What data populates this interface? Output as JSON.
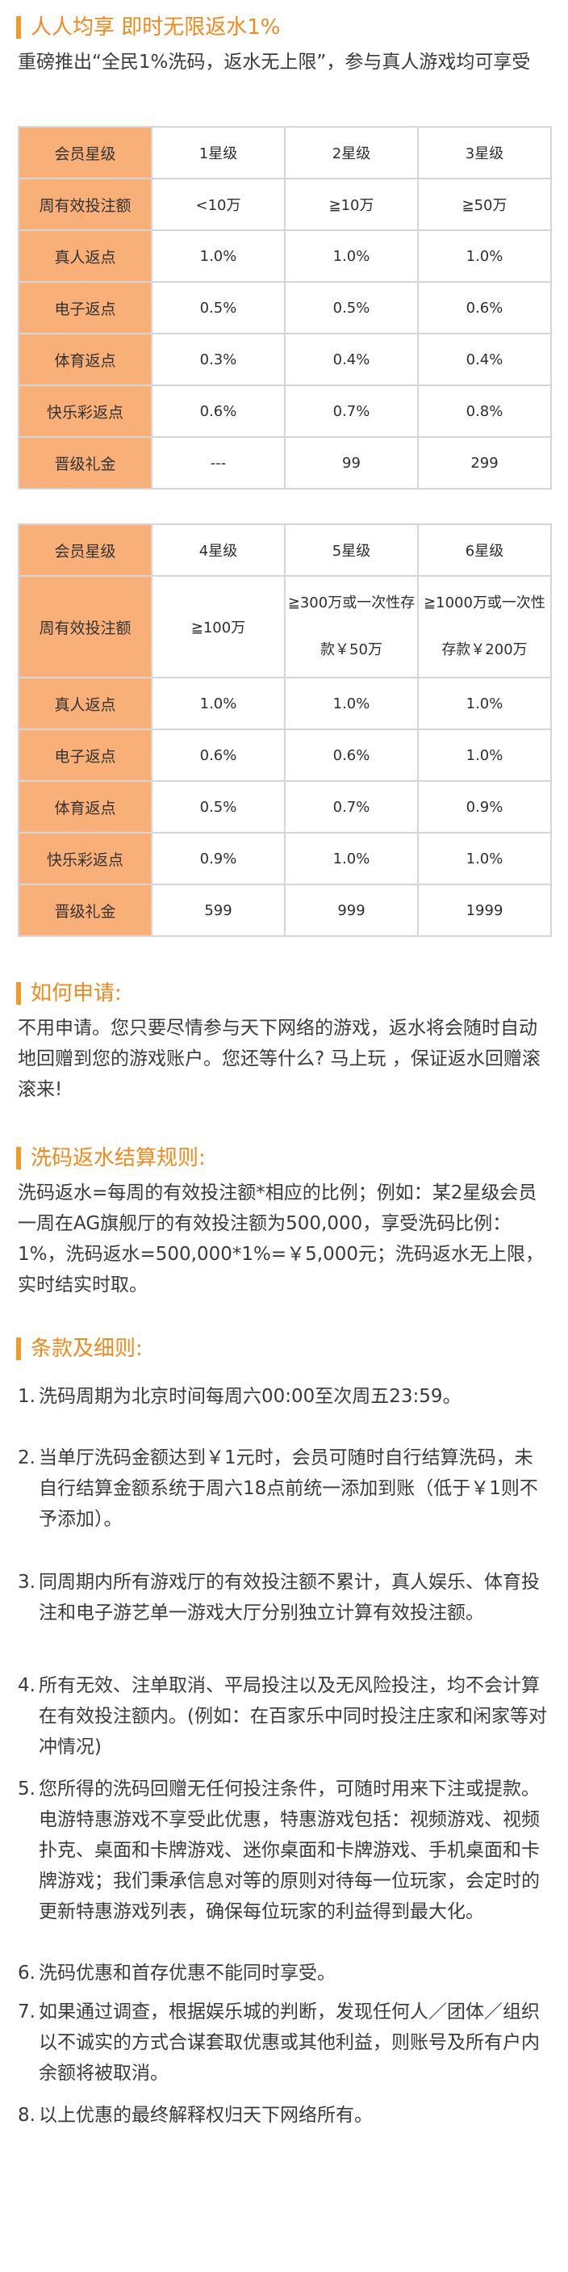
{
  "colors": {
    "accent": "#f39a2c",
    "heading_text": "#f08a1c",
    "label_cell": "#f8b078"
  },
  "section1": {
    "title": "人人均享 即时无限返水1%",
    "intro": "重磅推出“全民1%洗码，返水无上限”，参与真人游戏均可享受"
  },
  "table1": {
    "header": [
      "会员星级",
      "1星级",
      "2星级",
      "3星级"
    ],
    "rows": [
      [
        "周有效投注额",
        "<10万",
        "≧10万",
        "≧50万"
      ],
      [
        "真人返点",
        "1.0%",
        "1.0%",
        "1.0%"
      ],
      [
        "电子返点",
        "0.5%",
        "0.5%",
        "0.6%"
      ],
      [
        "体育返点",
        "0.3%",
        "0.4%",
        "0.4%"
      ],
      [
        "快乐彩返点",
        "0.6%",
        "0.7%",
        "0.8%"
      ],
      [
        "晋级礼金",
        "---",
        "99",
        "299"
      ]
    ]
  },
  "table2": {
    "header": [
      "会员星级",
      "4星级",
      "5星级",
      "6星级"
    ],
    "rows": [
      [
        "周有效投注额",
        "≧100万",
        "≧300万或一次性存款￥50万",
        "≧1000万或一次性存款￥200万"
      ],
      [
        "真人返点",
        "1.0%",
        "1.0%",
        "1.0%"
      ],
      [
        "电子返点",
        "0.6%",
        "0.6%",
        "1.0%"
      ],
      [
        "体育返点",
        "0.5%",
        "0.7%",
        "0.9%"
      ],
      [
        "快乐彩返点",
        "0.9%",
        "1.0%",
        "1.0%"
      ],
      [
        "晋级礼金",
        "599",
        "999",
        "1999"
      ]
    ]
  },
  "apply": {
    "title": "如何申请:",
    "body": "不用申请。您只要尽情参与天下网络的游戏，返水将会随时自动地回赠到您的游戏账户。您还等什么? 马上玩 ，保证返水回赠滚滚来!"
  },
  "rules": {
    "title": "洗码返水结算规则:",
    "body": "洗码返水=每周的有效投注额*相应的比例；例如：某2星级会员一周在AG旗舰厅的有效投注额为500,000，享受洗码比例：1%，洗码返水=500,000*1%=￥5,000元；洗码返水无上限，实时结实时取。"
  },
  "terms": {
    "title": "条款及细则:",
    "items": [
      {
        "num": "1.",
        "text": "洗码周期为北京时间每周六00:00至次周五23:59。"
      },
      {
        "num": "2.",
        "text": "当单厅洗码金额达到￥1元时，会员可随时自行结算洗码，未自行结算金额系统于周六18点前统一添加到账（低于￥1则不予添加）。"
      },
      {
        "num": "3.",
        "text": "同周期内所有游戏厅的有效投注额不累计，真人娱乐、体育投注和电子游艺单一游戏大厅分别独立计算有效投注额。"
      },
      {
        "num": "4.",
        "text": "所有无效、注单取消、平局投注以及无风险投注，均不会计算在有效投注额内。(例如：在百家乐中同时投注庄家和闲家等对冲情况)"
      },
      {
        "num": "5.",
        "text": "您所得的洗码回赠无任何投注条件，可随时用来下注或提款。电游特惠游戏不享受此优惠，特惠游戏包括：视频游戏、视频扑克、桌面和卡牌游戏、迷你桌面和卡牌游戏、手机桌面和卡牌游戏；我们秉承信息对等的原则对待每一位玩家，会定时的更新特惠游戏列表，确保每位玩家的利益得到最大化。"
      },
      {
        "num": "6.",
        "text": "洗码优惠和首存优惠不能同时享受。"
      },
      {
        "num": "7.",
        "text": "如果通过调查，根据娱乐城的判断，发现任何人／团体／组织以不诚实的方式合谋套取优惠或其他利益，则账号及所有户内余额将被取消。"
      },
      {
        "num": "8.",
        "text": "以上优惠的最终解释权归天下网络所有。"
      }
    ]
  }
}
